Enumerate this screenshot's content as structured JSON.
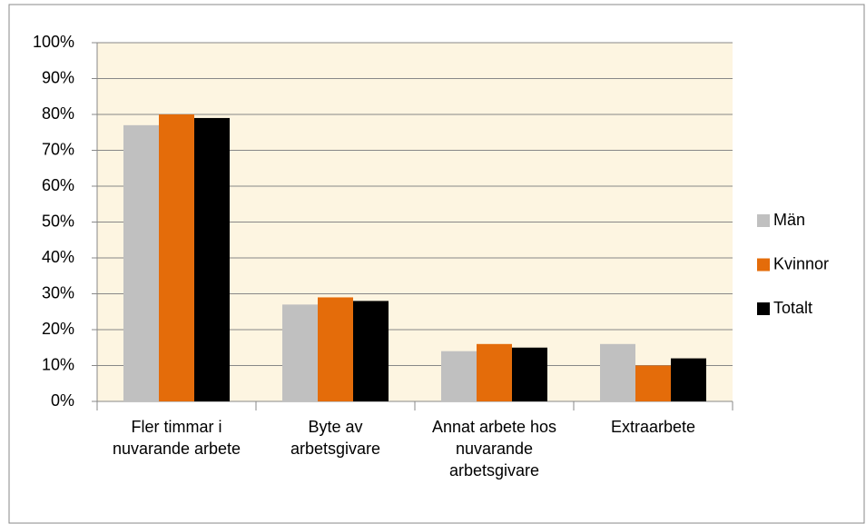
{
  "chart_data": {
    "type": "bar",
    "categories": [
      "Fler timmar i nuvarande arbete",
      "Byte av arbetsgivare",
      "Annat arbete hos nuvarande arbetsgivare",
      "Extraarbete"
    ],
    "series": [
      {
        "name": "Män",
        "color": "#c0c0c0",
        "values": [
          77,
          27,
          14,
          16
        ]
      },
      {
        "name": "Kvinnor",
        "color": "#e46c0a",
        "values": [
          80,
          29,
          16,
          10
        ]
      },
      {
        "name": "Totalt",
        "color": "#000000",
        "values": [
          79,
          28,
          15,
          12
        ]
      }
    ],
    "ylim": [
      0,
      100
    ],
    "yticks": [
      {
        "value": 0,
        "label": "0%"
      },
      {
        "value": 10,
        "label": "10%"
      },
      {
        "value": 20,
        "label": "20%"
      },
      {
        "value": 30,
        "label": "30%"
      },
      {
        "value": 40,
        "label": "40%"
      },
      {
        "value": 50,
        "label": "50%"
      },
      {
        "value": 60,
        "label": "60%"
      },
      {
        "value": 70,
        "label": "70%"
      },
      {
        "value": 80,
        "label": "80%"
      },
      {
        "value": 90,
        "label": "90%"
      },
      {
        "value": 100,
        "label": "100%"
      }
    ],
    "grid": true,
    "legend": "right"
  }
}
